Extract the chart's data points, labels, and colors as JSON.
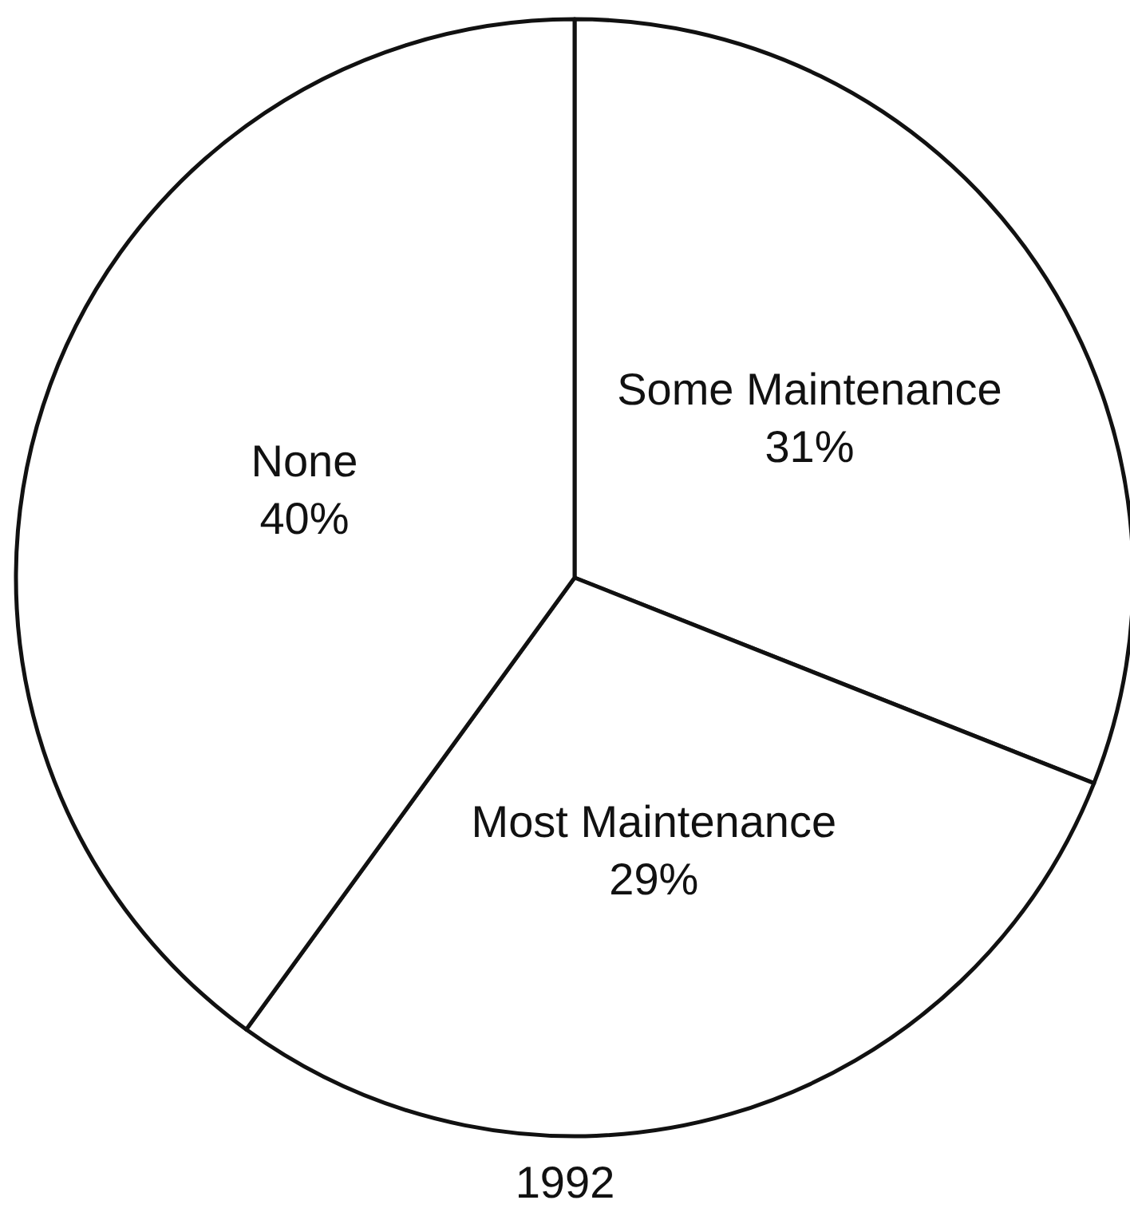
{
  "chart_data": {
    "type": "pie",
    "title": "1992",
    "categories": [
      "Some Maintenance",
      "Most Maintenance",
      "None"
    ],
    "values": [
      31,
      29,
      40
    ],
    "colors": [
      "#ffffff",
      "#ffffff",
      "#ffffff"
    ],
    "value_labels": [
      "31%",
      "29%",
      "40%"
    ]
  }
}
